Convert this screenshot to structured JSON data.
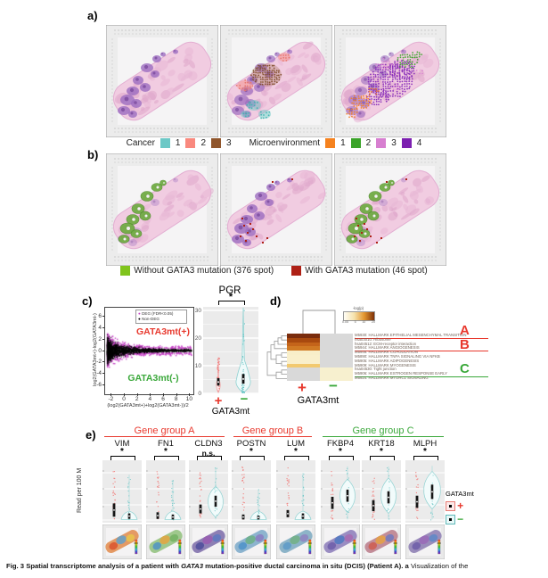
{
  "panels": {
    "a": "a)",
    "b": "b)",
    "c": "c)",
    "d": "d)",
    "e": "e)"
  },
  "cluster_legend": {
    "cancer_label": "Cancer",
    "cancer_items": [
      {
        "label": "1",
        "color": "#6cc8c6"
      },
      {
        "label": "2",
        "color": "#f9897e"
      },
      {
        "label": "3",
        "color": "#90562c"
      }
    ],
    "micro_label": "Microenvironment",
    "micro_items": [
      {
        "label": "1",
        "color": "#f5821f"
      },
      {
        "label": "2",
        "color": "#3aa329"
      },
      {
        "label": "3",
        "color": "#d77fd0"
      },
      {
        "label": "4",
        "color": "#7c1fb0"
      }
    ]
  },
  "mutation_legend": {
    "without": {
      "label": "Without GATA3 mutation (376 spot)",
      "color": "#80c41c"
    },
    "with": {
      "label": "With GATA3 mutation (46 spot)",
      "color": "#ae2015"
    }
  },
  "ma_plot": {
    "legend_deg": "DEG (FDR<0.05)",
    "legend_nondeg": "Non-DEG",
    "deg_color": "#c643c6",
    "nondeg_color": "#000000",
    "label_pos": "GATA3mt(+)",
    "label_neg": "GATA3mt(-)",
    "label_pos_color": "#e8392e",
    "label_neg_color": "#3aa83a",
    "xlabel": "(log2(GATA3mt+)+log2(GATA3mt-))/2",
    "ylabel": "log2(GATA3mt+)-log2(GATA3mt-)",
    "x_ticks": [
      "-2",
      "0",
      "2",
      "4",
      "6",
      "8",
      "10"
    ],
    "y_ticks": [
      "6",
      "4",
      "2",
      "0",
      "-2",
      "-4",
      "-6"
    ]
  },
  "pgr_plot": {
    "title": "PGR",
    "sig": "*",
    "y_ticks": [
      "30",
      "20",
      "10",
      "0"
    ],
    "plus": "+",
    "minus": "−",
    "xlabel": "GATA3mt"
  },
  "heatmap": {
    "colorbar_label": "-log(p)",
    "colorbar_ticks": [
      "0.05",
      "5",
      "10",
      "20"
    ],
    "plus": "+",
    "minus": "−",
    "xlabel": "GATA3mt",
    "rows": [
      {
        "name": "M5930: HALLMARK EPITHELIAL MESENCHYMAL TRANSITION",
        "plus": "#7a2c0d",
        "minus": "#d9d9d9",
        "underline": "#e8392e"
      },
      {
        "name": "hsa03010: Ribosome",
        "plus": "#a8490f",
        "minus": "#d9d9d9",
        "underline": ""
      },
      {
        "name": "hsa04512: ECM-receptor interaction",
        "plus": "#c4641a",
        "minus": "#d9d9d9",
        "underline": ""
      },
      {
        "name": "M5944: HALLMARK ANGIOGENESIS",
        "plus": "#d07a24",
        "minus": "#d9d9d9",
        "underline": "#e8392e"
      },
      {
        "name": "M5946: HALLMARK COAGULATION",
        "plus": "#f8eec9",
        "minus": "#d9d9d9",
        "underline": ""
      },
      {
        "name": "M5890: HALLMARK TNFA SIGNALING VIA NFKB",
        "plus": "#f9efcb",
        "minus": "#d9d9d9",
        "underline": ""
      },
      {
        "name": "M5905: HALLMARK ADIPOGENESIS",
        "plus": "#f9efcb",
        "minus": "#d9d9d9",
        "underline": ""
      },
      {
        "name": "M5909: HALLMARK MYOGENESIS",
        "plus": "#f2c96f",
        "minus": "#d9d9d9",
        "underline": ""
      },
      {
        "name": "hsa04530: Tight junction",
        "plus": "#d9d9d9",
        "minus": "#f7f0cf",
        "underline": ""
      },
      {
        "name": "M5906: HALLMARK ESTROGEN RESPONSE EARLY",
        "plus": "#d9d9d9",
        "minus": "#f7f0cf",
        "underline": "#3aa83a"
      },
      {
        "name": "M5924: HALLMARK MTORC1 SIGNALING",
        "plus": "#d9d9d9",
        "minus": "#f7f0cf",
        "underline": ""
      }
    ],
    "group_letters": [
      {
        "label": "A",
        "color": "#e8392e"
      },
      {
        "label": "B",
        "color": "#e8392e"
      },
      {
        "label": "C",
        "color": "#3aa83a"
      }
    ]
  },
  "gene_groups": [
    {
      "label": "Gene group A",
      "color": "#e8392e"
    },
    {
      "label": "Gene group B",
      "color": "#e8392e"
    },
    {
      "label": "Gene group C",
      "color": "#3aa83a"
    }
  ],
  "violin_panels": [
    {
      "gene": "VIM",
      "sig": "*"
    },
    {
      "gene": "FN1",
      "sig": "*"
    },
    {
      "gene": "CLDN3",
      "sig": "n.s."
    },
    {
      "gene": "POSTN",
      "sig": "*"
    },
    {
      "gene": "LUM",
      "sig": "*"
    },
    {
      "gene": "FKBP4",
      "sig": "*"
    },
    {
      "gene": "KRT18",
      "sig": "*"
    },
    {
      "gene": "MLPH",
      "sig": "*"
    }
  ],
  "violin_axis": {
    "ylabel": "Read per 100 M"
  },
  "violin_legend": {
    "title": "GATA3mt",
    "plus": "+",
    "minus": "−",
    "plus_color": "#e8392e",
    "minus_color": "#3aa83a"
  },
  "caption": {
    "bold_prefix": "Fig. 3 Spatial transcriptome analysis of a patient with ",
    "italic_gene": "GATA3",
    "bold_suffix": " mutation-positive ductal carcinoma in situ (DCIS) (Patient A). ",
    "seq_label": "a",
    "rest": " Visualization of the"
  }
}
